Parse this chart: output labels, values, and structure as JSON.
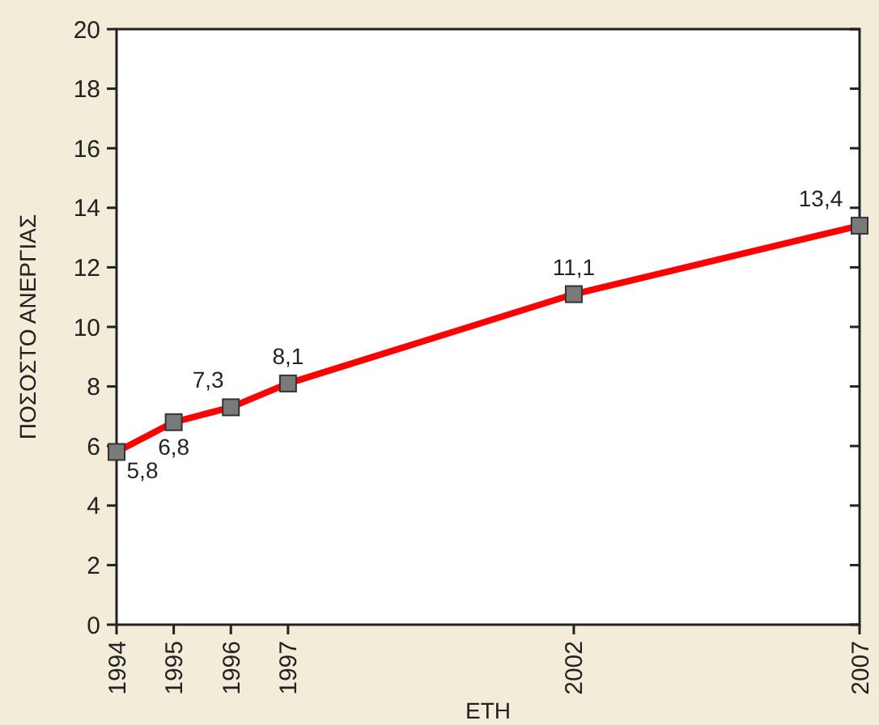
{
  "chart_data": {
    "type": "line",
    "xlabel": "ΕΤΗ",
    "ylabel": "ΠΟΣΟΣΤΟ ΑΝΕΡΓΙΑΣ",
    "x": [
      1994,
      1995,
      1996,
      1997,
      2002,
      2007
    ],
    "series": [
      {
        "color": "#ff0000",
        "values": [
          5.8,
          6.8,
          7.3,
          8.1,
          11.1,
          13.4
        ],
        "value_labels": [
          "5,8",
          "6,8",
          "7,3",
          "8,1",
          "11,1",
          "13,4"
        ]
      }
    ],
    "xlim": [
      1994,
      2007
    ],
    "xticks": [
      1994,
      1995,
      1996,
      1997,
      2002,
      2007
    ],
    "ylim": [
      0,
      20
    ],
    "yticks": [
      0,
      2,
      4,
      6,
      8,
      10,
      12,
      14,
      16,
      18,
      20
    ],
    "marker": "square",
    "line_style": "solid"
  }
}
